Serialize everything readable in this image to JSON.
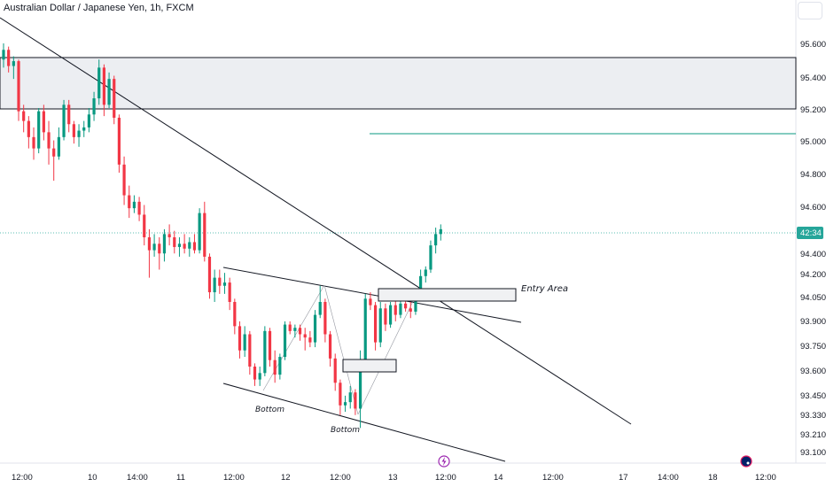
{
  "header": {
    "title": "Australian Dollar / Japanese Yen, 1h, FXCM"
  },
  "chart_data": {
    "type": "candlestick",
    "title": "Australian Dollar / Japanese Yen, 1h, FXCM",
    "symbol": "AUDJPY",
    "ylim": [
      93.05,
      95.75
    ],
    "x_ticks": [
      "12:00",
      "10",
      "14:00",
      "11",
      "12:00",
      "12",
      "12:00",
      "13",
      "12:00",
      "14",
      "12:00",
      "17",
      "14:00",
      "18",
      "12:00"
    ],
    "y_ticks": [
      "95.600",
      "95.400",
      "95.200",
      "95.000",
      "94.800",
      "94.600",
      "94.400",
      "94.200",
      "94.050",
      "93.900",
      "93.750",
      "93.600",
      "93.450",
      "93.330",
      "93.210",
      "93.100"
    ],
    "current_price_label": "42:34",
    "current_price": 94.45,
    "colors": {
      "up": "#089981",
      "down": "#f23645",
      "line": "#131722",
      "zone_fill": "#eceef2",
      "level": "#089981",
      "price_line": "#26a69a"
    },
    "candles": [
      {
        "o": 95.5,
        "h": 95.6,
        "l": 95.45,
        "c": 95.56
      },
      {
        "o": 95.56,
        "h": 95.58,
        "l": 95.42,
        "c": 95.46
      },
      {
        "o": 95.46,
        "h": 95.52,
        "l": 95.38,
        "c": 95.49
      },
      {
        "o": 95.49,
        "h": 95.5,
        "l": 95.12,
        "c": 95.18
      },
      {
        "o": 95.18,
        "h": 95.22,
        "l": 95.05,
        "c": 95.12
      },
      {
        "o": 95.12,
        "h": 95.15,
        "l": 94.95,
        "c": 95.02
      },
      {
        "o": 95.02,
        "h": 95.08,
        "l": 94.88,
        "c": 94.95
      },
      {
        "o": 94.95,
        "h": 95.2,
        "l": 94.92,
        "c": 95.18
      },
      {
        "o": 95.18,
        "h": 95.22,
        "l": 95.0,
        "c": 95.05
      },
      {
        "o": 95.05,
        "h": 95.12,
        "l": 94.85,
        "c": 94.95
      },
      {
        "o": 94.95,
        "h": 95.0,
        "l": 94.75,
        "c": 94.9
      },
      {
        "o": 94.9,
        "h": 95.08,
        "l": 94.88,
        "c": 95.02
      },
      {
        "o": 95.02,
        "h": 95.25,
        "l": 95.0,
        "c": 95.22
      },
      {
        "o": 95.22,
        "h": 95.25,
        "l": 95.05,
        "c": 95.1
      },
      {
        "o": 95.1,
        "h": 95.12,
        "l": 94.98,
        "c": 95.02
      },
      {
        "o": 95.02,
        "h": 95.1,
        "l": 94.96,
        "c": 95.06
      },
      {
        "o": 95.06,
        "h": 95.12,
        "l": 95.02,
        "c": 95.08
      },
      {
        "o": 95.08,
        "h": 95.2,
        "l": 95.05,
        "c": 95.16
      },
      {
        "o": 95.16,
        "h": 95.3,
        "l": 95.12,
        "c": 95.26
      },
      {
        "o": 95.26,
        "h": 95.5,
        "l": 95.22,
        "c": 95.45
      },
      {
        "o": 95.45,
        "h": 95.47,
        "l": 95.15,
        "c": 95.22
      },
      {
        "o": 95.22,
        "h": 95.42,
        "l": 95.2,
        "c": 95.38
      },
      {
        "o": 95.38,
        "h": 95.4,
        "l": 95.1,
        "c": 95.14
      },
      {
        "o": 95.14,
        "h": 95.16,
        "l": 94.8,
        "c": 94.85
      },
      {
        "o": 94.85,
        "h": 94.9,
        "l": 94.6,
        "c": 94.66
      },
      {
        "o": 94.66,
        "h": 94.72,
        "l": 94.52,
        "c": 94.58
      },
      {
        "o": 94.58,
        "h": 94.66,
        "l": 94.55,
        "c": 94.62
      },
      {
        "o": 94.62,
        "h": 94.65,
        "l": 94.5,
        "c": 94.54
      },
      {
        "o": 94.54,
        "h": 94.6,
        "l": 94.35,
        "c": 94.4
      },
      {
        "o": 94.4,
        "h": 94.45,
        "l": 94.15,
        "c": 94.32
      },
      {
        "o": 94.32,
        "h": 94.42,
        "l": 94.28,
        "c": 94.36
      },
      {
        "o": 94.36,
        "h": 94.4,
        "l": 94.2,
        "c": 94.3
      },
      {
        "o": 94.3,
        "h": 94.45,
        "l": 94.25,
        "c": 94.42
      },
      {
        "o": 94.42,
        "h": 94.48,
        "l": 94.35,
        "c": 94.4
      },
      {
        "o": 94.4,
        "h": 94.44,
        "l": 94.3,
        "c": 94.34
      },
      {
        "o": 94.34,
        "h": 94.4,
        "l": 94.28,
        "c": 94.36
      },
      {
        "o": 94.36,
        "h": 94.42,
        "l": 94.3,
        "c": 94.33
      },
      {
        "o": 94.33,
        "h": 94.4,
        "l": 94.28,
        "c": 94.37
      },
      {
        "o": 94.37,
        "h": 94.42,
        "l": 94.3,
        "c": 94.32
      },
      {
        "o": 94.32,
        "h": 94.58,
        "l": 94.3,
        "c": 94.55
      },
      {
        "o": 94.55,
        "h": 94.62,
        "l": 94.25,
        "c": 94.28
      },
      {
        "o": 94.28,
        "h": 94.3,
        "l": 94.02,
        "c": 94.06
      },
      {
        "o": 94.06,
        "h": 94.2,
        "l": 94.0,
        "c": 94.15
      },
      {
        "o": 94.15,
        "h": 94.2,
        "l": 94.05,
        "c": 94.1
      },
      {
        "o": 94.1,
        "h": 94.18,
        "l": 94.05,
        "c": 94.12
      },
      {
        "o": 94.12,
        "h": 94.15,
        "l": 93.95,
        "c": 94.0
      },
      {
        "o": 94.0,
        "h": 94.02,
        "l": 93.8,
        "c": 93.85
      },
      {
        "o": 93.85,
        "h": 93.88,
        "l": 93.65,
        "c": 93.7
      },
      {
        "o": 93.7,
        "h": 93.85,
        "l": 93.66,
        "c": 93.8
      },
      {
        "o": 93.8,
        "h": 93.82,
        "l": 93.55,
        "c": 93.6
      },
      {
        "o": 93.6,
        "h": 93.62,
        "l": 93.48,
        "c": 93.52
      },
      {
        "o": 93.52,
        "h": 93.6,
        "l": 93.48,
        "c": 93.56
      },
      {
        "o": 93.56,
        "h": 93.85,
        "l": 93.54,
        "c": 93.82
      },
      {
        "o": 93.82,
        "h": 93.84,
        "l": 93.6,
        "c": 93.64
      },
      {
        "o": 93.64,
        "h": 93.7,
        "l": 93.5,
        "c": 93.55
      },
      {
        "o": 93.55,
        "h": 93.68,
        "l": 93.52,
        "c": 93.66
      },
      {
        "o": 93.66,
        "h": 93.88,
        "l": 93.64,
        "c": 93.86
      },
      {
        "o": 93.86,
        "h": 93.88,
        "l": 93.8,
        "c": 93.82
      },
      {
        "o": 93.82,
        "h": 93.86,
        "l": 93.78,
        "c": 93.84
      },
      {
        "o": 93.84,
        "h": 93.86,
        "l": 93.76,
        "c": 93.8
      },
      {
        "o": 93.8,
        "h": 93.84,
        "l": 93.7,
        "c": 93.78
      },
      {
        "o": 93.78,
        "h": 93.82,
        "l": 93.72,
        "c": 93.75
      },
      {
        "o": 93.75,
        "h": 93.95,
        "l": 93.72,
        "c": 93.92
      },
      {
        "o": 93.92,
        "h": 94.1,
        "l": 93.9,
        "c": 94.0
      },
      {
        "o": 94.0,
        "h": 94.02,
        "l": 93.75,
        "c": 93.8
      },
      {
        "o": 93.8,
        "h": 93.82,
        "l": 93.6,
        "c": 93.65
      },
      {
        "o": 93.65,
        "h": 93.68,
        "l": 93.45,
        "c": 93.5
      },
      {
        "o": 93.5,
        "h": 93.52,
        "l": 93.3,
        "c": 93.36
      },
      {
        "o": 93.36,
        "h": 93.42,
        "l": 93.32,
        "c": 93.38
      },
      {
        "o": 93.38,
        "h": 93.48,
        "l": 93.34,
        "c": 93.44
      },
      {
        "o": 93.44,
        "h": 93.46,
        "l": 93.3,
        "c": 93.34
      },
      {
        "o": 93.34,
        "h": 93.7,
        "l": 93.22,
        "c": 93.62
      },
      {
        "o": 93.62,
        "h": 94.05,
        "l": 93.58,
        "c": 94.02
      },
      {
        "o": 94.02,
        "h": 94.06,
        "l": 93.95,
        "c": 93.98
      },
      {
        "o": 93.98,
        "h": 94.0,
        "l": 93.7,
        "c": 93.75
      },
      {
        "o": 93.75,
        "h": 94.0,
        "l": 93.72,
        "c": 93.96
      },
      {
        "o": 93.96,
        "h": 93.99,
        "l": 93.82,
        "c": 93.86
      },
      {
        "o": 93.86,
        "h": 94.0,
        "l": 93.84,
        "c": 93.98
      },
      {
        "o": 93.98,
        "h": 94.02,
        "l": 93.88,
        "c": 93.92
      },
      {
        "o": 93.92,
        "h": 94.02,
        "l": 93.9,
        "c": 93.99
      },
      {
        "o": 93.99,
        "h": 94.01,
        "l": 93.94,
        "c": 93.96
      },
      {
        "o": 93.96,
        "h": 94.0,
        "l": 93.9,
        "c": 93.94
      },
      {
        "o": 93.94,
        "h": 94.08,
        "l": 93.92,
        "c": 94.05
      },
      {
        "o": 94.05,
        "h": 94.2,
        "l": 94.02,
        "c": 94.16
      },
      {
        "o": 94.16,
        "h": 94.22,
        "l": 94.12,
        "c": 94.2
      },
      {
        "o": 94.2,
        "h": 94.38,
        "l": 94.18,
        "c": 94.35
      },
      {
        "o": 94.35,
        "h": 94.46,
        "l": 94.3,
        "c": 94.42
      },
      {
        "o": 94.42,
        "h": 94.48,
        "l": 94.38,
        "c": 94.45
      }
    ],
    "zones": [
      {
        "from": 95.2,
        "to": 95.53,
        "label": ""
      }
    ],
    "horizontal_levels": [
      {
        "price": 95.06
      }
    ],
    "boxes": [
      {
        "label": "Entry Area",
        "price_top": 94.1,
        "price_bottom": 94.05
      },
      {
        "label": "",
        "price_top": 93.67,
        "price_bottom": 93.6
      }
    ],
    "annotations": [
      {
        "text": "Bottom"
      },
      {
        "text": "Bottom"
      }
    ]
  }
}
